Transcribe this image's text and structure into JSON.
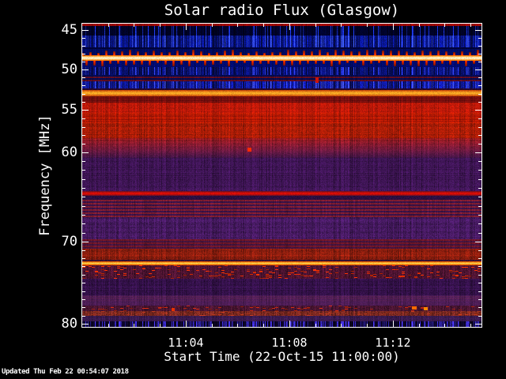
{
  "figure": {
    "title": "Solar radio Flux (Glasgow)",
    "x_axis_label": "Start Time (22-Oct-15 11:00:00)",
    "y_axis_label": "Frequency [MHz]"
  },
  "footer": {
    "updated": "Updated Thu Feb 22 00:54:07 2018"
  },
  "chart_data": {
    "type": "heatmap",
    "title": "Solar radio Flux (Glasgow)",
    "xlabel": "Start Time (22-Oct-15 11:00:00)",
    "ylabel": "Frequency [MHz]",
    "x_start_time": "11:00:00",
    "x_span_minutes": 15.42,
    "x_major_ticks": [
      {
        "minute": 4,
        "label": "11:04"
      },
      {
        "minute": 8,
        "label": "11:08"
      },
      {
        "minute": 12,
        "label": "11:12"
      }
    ],
    "x_minor_tick_every_minutes": 1,
    "ylim": [
      44.2,
      80.1
    ],
    "y_axis_inverted_low_at_top": true,
    "y_major_ticks": [
      {
        "f": 45,
        "frac": 0.021
      },
      {
        "f": 50,
        "frac": 0.151
      },
      {
        "f": 55,
        "frac": 0.284
      },
      {
        "f": 60,
        "frac": 0.424
      },
      {
        "f": 70,
        "frac": 0.719
      },
      {
        "f": 80,
        "frac": 0.99
      }
    ],
    "y_minor_tick_every_mhz": 1,
    "grid": false,
    "legend": "none",
    "palette": {
      "background": "#000000",
      "frame": "#ffffff",
      "text": "#ffffff",
      "low_intensity": "#000a60",
      "mid_intensity": "#cc2200",
      "high_intensity": "#ff9900",
      "peak_intensity": "#ffffd8"
    },
    "bands": [
      {
        "y0": 0.0,
        "y1": 0.009,
        "tex": "rows",
        "c1": "#8c0505",
        "c2": "#c01010"
      },
      {
        "y0": 0.009,
        "y1": 0.04,
        "tex": "streaks",
        "c1": "#000440",
        "c2": "#1830cc",
        "amp": 0.55,
        "thr": 0.86
      },
      {
        "y0": 0.04,
        "y1": 0.078,
        "tex": "streaks",
        "c1": "#0a18a0",
        "c2": "#3048e8",
        "amp": 1.0,
        "thr": 0.75
      },
      {
        "y0": 0.078,
        "y1": 0.084,
        "tex": "flat",
        "c1": "#000338"
      },
      {
        "y0": 0.084,
        "y1": 0.104,
        "tex": "spikes",
        "c1": "#000a60",
        "c2": "#e03008",
        "anchor": "bottom"
      },
      {
        "y0": 0.104,
        "y1": 0.122,
        "tex": "gradient",
        "c1": "#ff7a00",
        "c2": "#ffffd8"
      },
      {
        "y0": 0.122,
        "y1": 0.143,
        "tex": "spikes",
        "c1": "#000a70",
        "c2": "#d82808",
        "anchor": "top"
      },
      {
        "y0": 0.143,
        "y1": 0.17,
        "tex": "streaks",
        "c1": "#0a1488",
        "c2": "#2838d8",
        "amp": 0.9,
        "thr": 0.8
      },
      {
        "y0": 0.17,
        "y1": 0.19,
        "tex": "altrows",
        "c1": "#000a50",
        "c2": "#5c0c20"
      },
      {
        "y0": 0.19,
        "y1": 0.214,
        "tex": "streaks",
        "c1": "#101cb0",
        "c2": "#3644e0",
        "amp": 1.0,
        "thr": 0.78
      },
      {
        "y0": 0.214,
        "y1": 0.22,
        "tex": "flat",
        "c1": "#28082a"
      },
      {
        "y0": 0.22,
        "y1": 0.24,
        "tex": "gradient",
        "c1": "#c84a08",
        "c2": "#ffb428"
      },
      {
        "y0": 0.24,
        "y1": 0.261,
        "tex": "rows",
        "c1": "#600a0a",
        "c2": "#8c1410"
      },
      {
        "y0": 0.261,
        "y1": 0.295,
        "tex": "mottled",
        "c1": "#b81808",
        "amp": 0.35
      },
      {
        "y0": 0.295,
        "y1": 0.327,
        "tex": "rows",
        "c1": "#d42202",
        "c2": "#981206"
      },
      {
        "y0": 0.327,
        "y1": 0.378,
        "tex": "mottled",
        "c1": "#a81c06",
        "amp": 0.4
      },
      {
        "y0": 0.378,
        "y1": 0.443,
        "tex": "fade",
        "c1": "#961a20",
        "c2": "#48164a",
        "amp": 0.45
      },
      {
        "y0": 0.443,
        "y1": 0.552,
        "tex": "mottled",
        "c1": "#3c1452",
        "amp": 0.5
      },
      {
        "y0": 0.552,
        "y1": 0.569,
        "tex": "gradient",
        "c1": "#7a1020",
        "c2": "#e80c00"
      },
      {
        "y0": 0.569,
        "y1": 0.582,
        "tex": "flat",
        "c1": "#2a0f40"
      },
      {
        "y0": 0.582,
        "y1": 0.638,
        "tex": "altrows",
        "c1": "#7c1c30",
        "c2": "#3a1248"
      },
      {
        "y0": 0.638,
        "y1": 0.711,
        "tex": "mottled",
        "c1": "#44195e",
        "amp": 0.5
      },
      {
        "y0": 0.711,
        "y1": 0.742,
        "tex": "altrows",
        "c1": "#6e1628",
        "c2": "#44143e"
      },
      {
        "y0": 0.742,
        "y1": 0.779,
        "tex": "mottled",
        "c1": "#8e1e0e",
        "amp": 0.45
      },
      {
        "y0": 0.779,
        "y1": 0.785,
        "tex": "flat",
        "c1": "#38102e"
      },
      {
        "y0": 0.785,
        "y1": 0.798,
        "tex": "gradient",
        "c1": "#e85c00",
        "c2": "#ffd048"
      },
      {
        "y0": 0.798,
        "y1": 0.841,
        "tex": "speckles",
        "c1": "#4c1330",
        "c2": "#d42a04",
        "p": 0.1
      },
      {
        "y0": 0.841,
        "y1": 0.896,
        "tex": "mottled",
        "c1": "#34114a",
        "amp": 0.5
      },
      {
        "y0": 0.896,
        "y1": 0.93,
        "tex": "rows",
        "c1": "#431a58",
        "c2": "#582050"
      },
      {
        "y0": 0.93,
        "y1": 0.948,
        "tex": "speckles",
        "c1": "#481430",
        "c2": "#b02410",
        "p": 0.08
      },
      {
        "y0": 0.948,
        "y1": 0.964,
        "tex": "speckles",
        "c1": "#7a2820",
        "c2": "#a03018",
        "p": 0.12
      },
      {
        "y0": 0.964,
        "y1": 0.982,
        "tex": "mottled",
        "c1": "#381a4e",
        "amp": 0.4
      },
      {
        "y0": 0.982,
        "y1": 1.0,
        "tex": "streaks",
        "c1": "#100836",
        "c2": "#3c2cd0",
        "amp": 1.0,
        "thr": 0.62
      }
    ],
    "features": [
      {
        "x": 0.414,
        "y": 0.409,
        "w": 5,
        "h": 5,
        "color": "#ff2a00"
      },
      {
        "x": 0.584,
        "y": 0.177,
        "w": 4,
        "h": 7,
        "color": "#cc1408"
      },
      {
        "x": 0.826,
        "y": 0.932,
        "w": 6,
        "h": 4,
        "color": "#ff6a00"
      },
      {
        "x": 0.855,
        "y": 0.934,
        "w": 5,
        "h": 4,
        "color": "#ff8800"
      },
      {
        "x": 0.224,
        "y": 0.937,
        "w": 4,
        "h": 4,
        "color": "#e83000"
      }
    ]
  }
}
